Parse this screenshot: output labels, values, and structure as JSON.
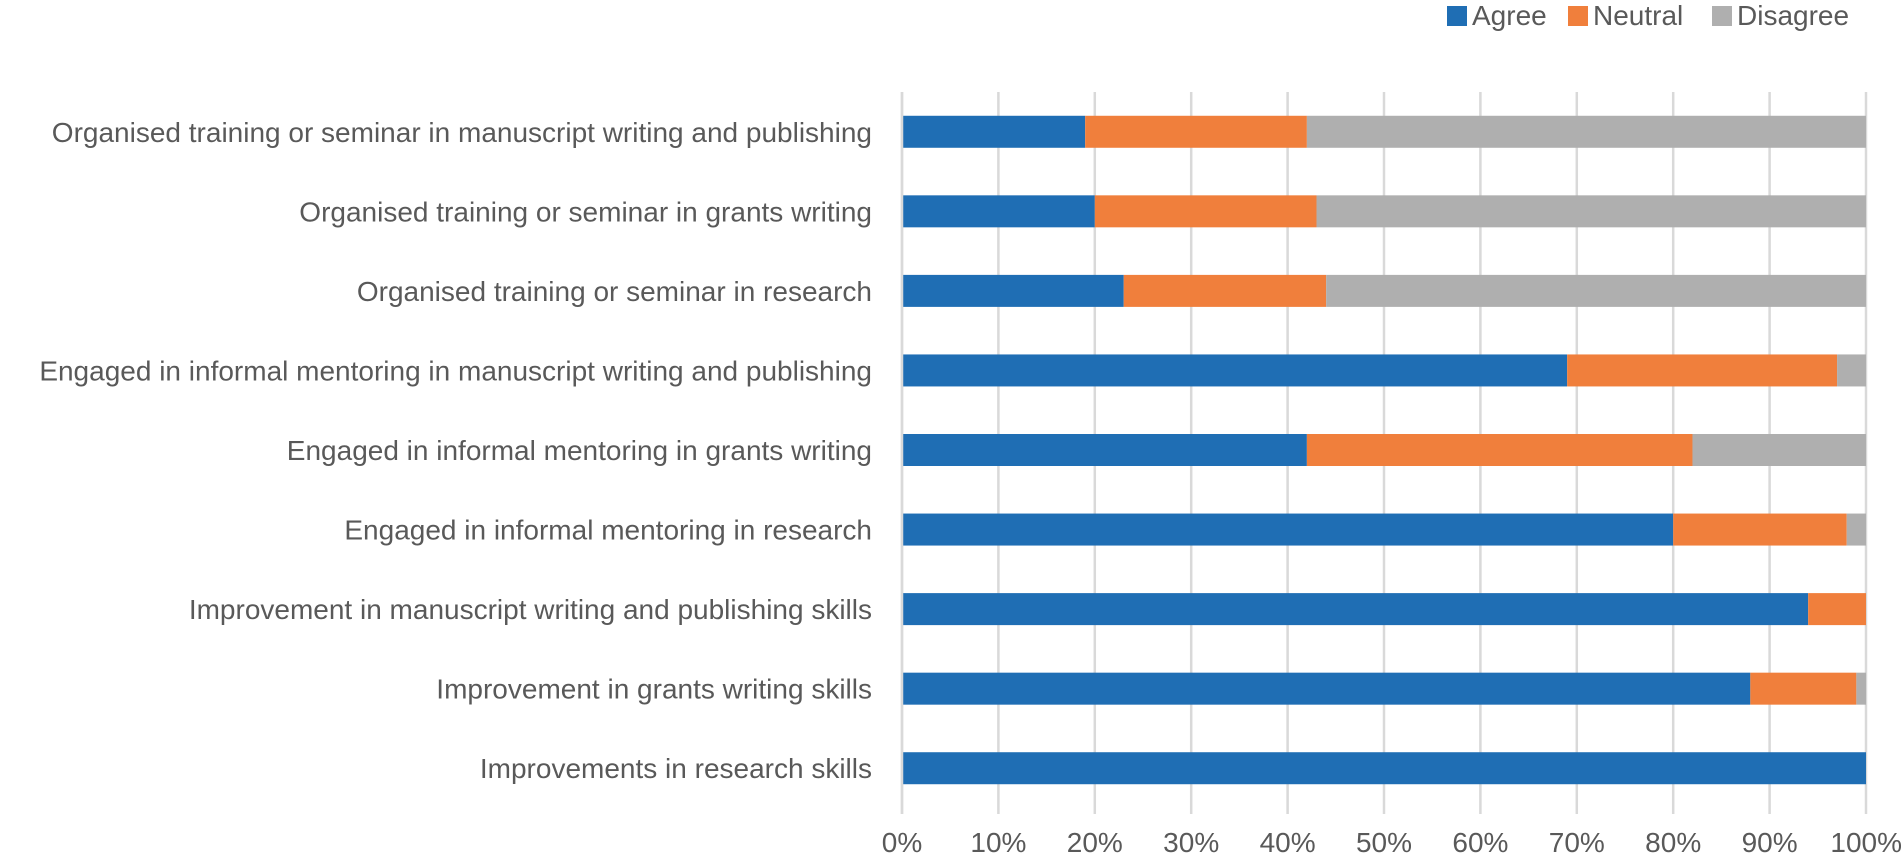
{
  "chart_data": {
    "type": "bar",
    "orientation": "horizontal",
    "stacked": "percent",
    "categories": [
      "Organised training or seminar in manuscript writing and publishing",
      "Organised training or seminar in grants writing",
      "Organised training or seminar in research",
      "Engaged in informal mentoring in manuscript writing and publishing",
      "Engaged in informal mentoring in grants writing",
      "Engaged in informal mentoring in research",
      "Improvement in manuscript writing and publishing skills",
      "Improvement in grants writing skills",
      "Improvements in research skills"
    ],
    "series": [
      {
        "name": "Agree",
        "color": "#1f6eb4",
        "values": [
          19,
          20,
          23,
          69,
          42,
          80,
          94,
          88,
          100
        ]
      },
      {
        "name": "Neutral",
        "color": "#f07f3c",
        "values": [
          23,
          23,
          21,
          28,
          40,
          18,
          6,
          11,
          0
        ]
      },
      {
        "name": "Disagree",
        "color": "#afafaf",
        "values": [
          58,
          57,
          56,
          3,
          18,
          2,
          0,
          1,
          0
        ]
      }
    ],
    "xlim": [
      0,
      100
    ],
    "x_ticks": [
      "0%",
      "10%",
      "20%",
      "30%",
      "40%",
      "50%",
      "60%",
      "70%",
      "80%",
      "90%",
      "100%"
    ],
    "grid": true,
    "legend_position": "top-right",
    "title": "",
    "xlabel": "",
    "ylabel": ""
  }
}
